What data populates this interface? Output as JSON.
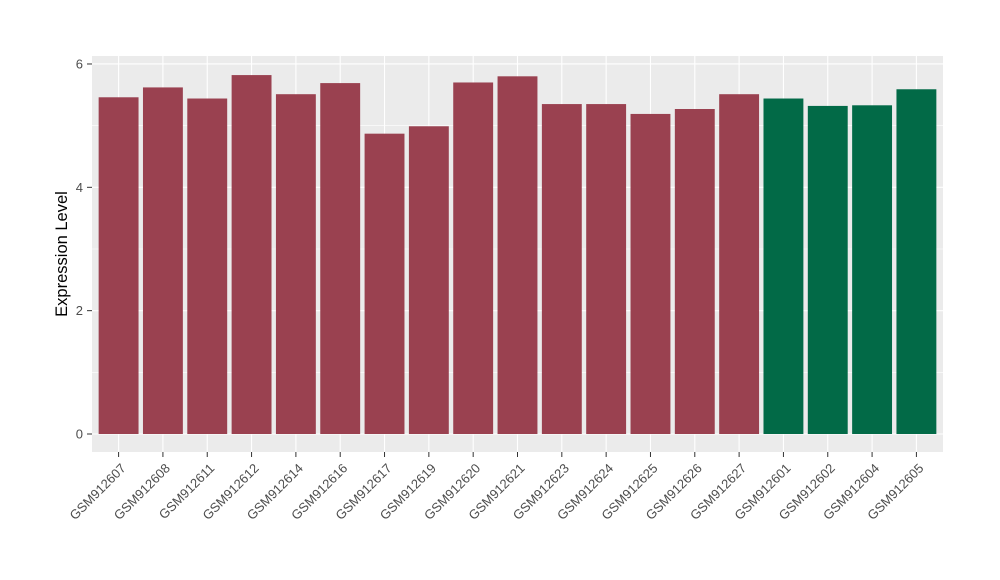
{
  "chart_data": {
    "type": "bar",
    "title": "",
    "xlabel": "",
    "ylabel": "Expression Level",
    "categories": [
      "GSM912607",
      "GSM912608",
      "GSM912611",
      "GSM912612",
      "GSM912614",
      "GSM912616",
      "GSM912617",
      "GSM912619",
      "GSM912620",
      "GSM912621",
      "GSM912623",
      "GSM912624",
      "GSM912625",
      "GSM912626",
      "GSM912627",
      "GSM912601",
      "GSM912602",
      "GSM912604",
      "GSM912605"
    ],
    "values": [
      5.46,
      5.62,
      5.44,
      5.82,
      5.51,
      5.69,
      4.87,
      4.99,
      5.7,
      5.8,
      5.35,
      5.35,
      5.19,
      5.27,
      5.51,
      5.44,
      5.32,
      5.33,
      5.59
    ],
    "bar_colors": [
      "#9A4150",
      "#9A4150",
      "#9A4150",
      "#9A4150",
      "#9A4150",
      "#9A4150",
      "#9A4150",
      "#9A4150",
      "#9A4150",
      "#9A4150",
      "#9A4150",
      "#9A4150",
      "#9A4150",
      "#9A4150",
      "#9A4150",
      "#026A47",
      "#026A47",
      "#026A47",
      "#026A47"
    ],
    "group_color_red": "#9A4150",
    "group_color_green": "#026A47",
    "ylim": [
      0,
      6.13
    ],
    "yticks": [
      0,
      2,
      4,
      6
    ],
    "yticks_minor": [
      1,
      3,
      5
    ],
    "x_label_angle_deg": 45,
    "legend": "none",
    "grid": true,
    "panel_background": "#EBEBEB",
    "gridline_color": "#FFFFFF",
    "axis_text_color": "#4D4D4D",
    "axis_title_color": "#000000",
    "tick_mark_color": "#333333",
    "page_background": "#FFFFFF"
  }
}
